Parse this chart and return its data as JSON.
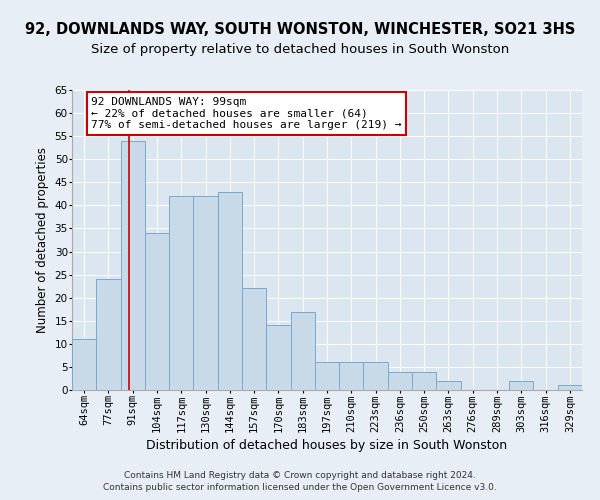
{
  "title": "92, DOWNLANDS WAY, SOUTH WONSTON, WINCHESTER, SO21 3HS",
  "subtitle": "Size of property relative to detached houses in South Wonston",
  "xlabel": "Distribution of detached houses by size in South Wonston",
  "ylabel": "Number of detached properties",
  "categories": [
    "64sqm",
    "77sqm",
    "91sqm",
    "104sqm",
    "117sqm",
    "130sqm",
    "144sqm",
    "157sqm",
    "170sqm",
    "183sqm",
    "197sqm",
    "210sqm",
    "223sqm",
    "236sqm",
    "250sqm",
    "263sqm",
    "276sqm",
    "289sqm",
    "303sqm",
    "316sqm",
    "329sqm"
  ],
  "values": [
    11,
    24,
    54,
    34,
    42,
    42,
    43,
    22,
    14,
    17,
    6,
    6,
    6,
    4,
    4,
    2,
    0,
    0,
    2,
    0,
    1
  ],
  "bar_color": "#c8d9e8",
  "bar_edgecolor": "#7aa8cc",
  "vline_x": 1.85,
  "vline_color": "#cc0000",
  "annotation_line1": "92 DOWNLANDS WAY: 99sqm",
  "annotation_line2": "← 22% of detached houses are smaller (64)",
  "annotation_line3": "77% of semi-detached houses are larger (219) →",
  "annotation_box_color": "white",
  "annotation_box_edgecolor": "#cc0000",
  "ylim": [
    0,
    65
  ],
  "yticks": [
    0,
    5,
    10,
    15,
    20,
    25,
    30,
    35,
    40,
    45,
    50,
    55,
    60,
    65
  ],
  "background_color": "#e8eef5",
  "plot_background": "#dce6f0",
  "footer1": "Contains HM Land Registry data © Crown copyright and database right 2024.",
  "footer2": "Contains public sector information licensed under the Open Government Licence v3.0.",
  "title_fontsize": 10.5,
  "subtitle_fontsize": 9.5,
  "xlabel_fontsize": 9,
  "ylabel_fontsize": 8.5,
  "tick_fontsize": 7.5,
  "annotation_fontsize": 8,
  "footer_fontsize": 6.5,
  "grid_color": "white",
  "grid_linewidth": 0.7
}
